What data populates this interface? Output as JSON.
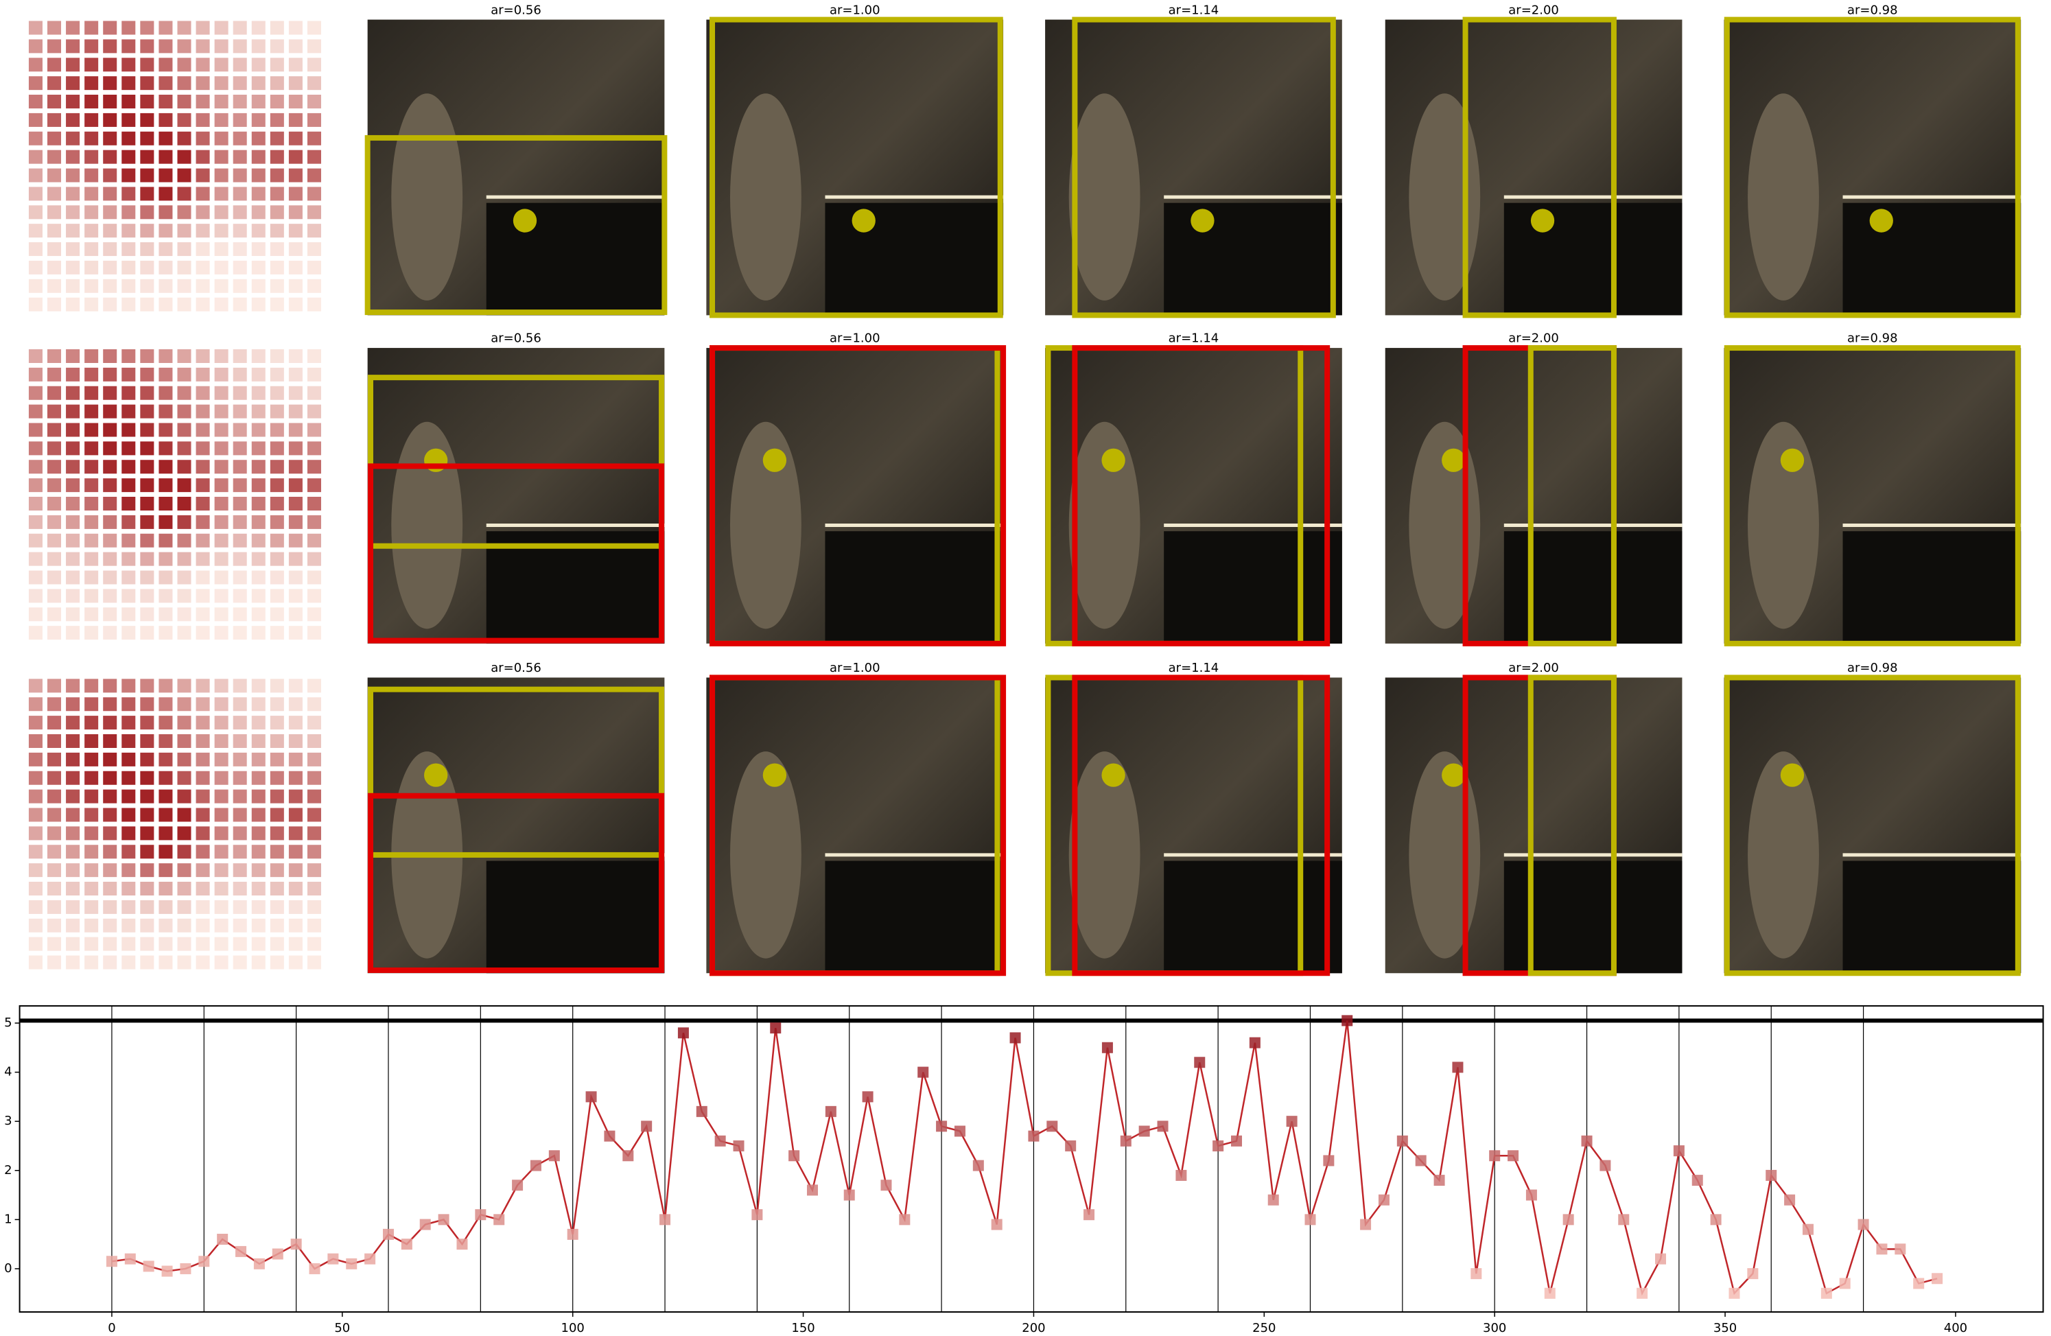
{
  "panel_rows": [
    {
      "titles": [
        "ar=0.56",
        "ar=1.00",
        "ar=1.14",
        "ar=2.00",
        "ar=0.98"
      ]
    },
    {
      "titles": [
        "ar=0.56",
        "ar=1.00",
        "ar=1.14",
        "ar=2.00",
        "ar=0.98"
      ]
    },
    {
      "titles": [
        "ar=0.56",
        "ar=1.00",
        "ar=1.14",
        "ar=2.00",
        "ar=0.98"
      ]
    }
  ],
  "chart_data": {
    "type": "line",
    "color": "#c0262a",
    "x": [
      0,
      4,
      8,
      12,
      16,
      20,
      24,
      28,
      32,
      36,
      40,
      44,
      48,
      52,
      56,
      60,
      64,
      68,
      72,
      76,
      80,
      84,
      88,
      92,
      96,
      100,
      104,
      108,
      112,
      116,
      120,
      124,
      128,
      132,
      136,
      140,
      144,
      148,
      152,
      156,
      160,
      164,
      168,
      172,
      176,
      180,
      184,
      188,
      192,
      196,
      200,
      204,
      208,
      212,
      216,
      220,
      224,
      228,
      232,
      236,
      240,
      244,
      248,
      252,
      256,
      260,
      264,
      268,
      272,
      276,
      280,
      284,
      288,
      292,
      296,
      300,
      304,
      308,
      312,
      316,
      320,
      324,
      328,
      332,
      336,
      340,
      344,
      348,
      352,
      356,
      360,
      364,
      368,
      372,
      376,
      380,
      384,
      388,
      392,
      396
    ],
    "values": [
      0.15,
      0.2,
      0.05,
      -0.05,
      0.0,
      0.15,
      0.6,
      0.35,
      0.1,
      0.3,
      0.5,
      0.0,
      0.2,
      0.1,
      0.2,
      0.7,
      0.5,
      0.9,
      1.0,
      0.5,
      1.1,
      1.0,
      1.7,
      2.1,
      2.3,
      0.7,
      3.5,
      2.7,
      2.3,
      2.9,
      1.0,
      4.8,
      3.2,
      2.6,
      2.5,
      1.1,
      4.9,
      2.3,
      1.6,
      3.2,
      1.5,
      3.5,
      1.7,
      1.0,
      4.0,
      2.9,
      2.8,
      2.1,
      0.9,
      4.7,
      2.7,
      2.9,
      2.5,
      1.1,
      4.5,
      2.6,
      2.8,
      2.9,
      1.9,
      4.2,
      2.5,
      2.6,
      4.6,
      1.4,
      3.0,
      1.0,
      2.2,
      5.05,
      0.9,
      1.4,
      2.6,
      2.2,
      1.8,
      4.1,
      -0.1,
      2.3,
      2.3,
      1.5,
      -0.5,
      1.0,
      2.6,
      2.1,
      1.0,
      -0.5,
      0.2,
      2.4,
      1.8,
      1.0,
      -0.5,
      -0.1,
      1.9,
      1.4,
      0.8,
      -0.5,
      -0.3,
      0.9,
      0.4,
      0.4,
      -0.3,
      -0.2
    ],
    "xlim": [
      -20,
      419
    ],
    "ylim": [
      -0.88,
      5.35
    ],
    "xticks": [
      0,
      50,
      100,
      150,
      200,
      250,
      300,
      350,
      400
    ],
    "yticks": [
      0,
      1,
      2,
      3,
      4,
      5
    ],
    "vlines": [
      0,
      20,
      40,
      60,
      80,
      100,
      120,
      140,
      160,
      180,
      200,
      220,
      240,
      260,
      280,
      300,
      320,
      340,
      360,
      380
    ],
    "hline": 5.05
  }
}
